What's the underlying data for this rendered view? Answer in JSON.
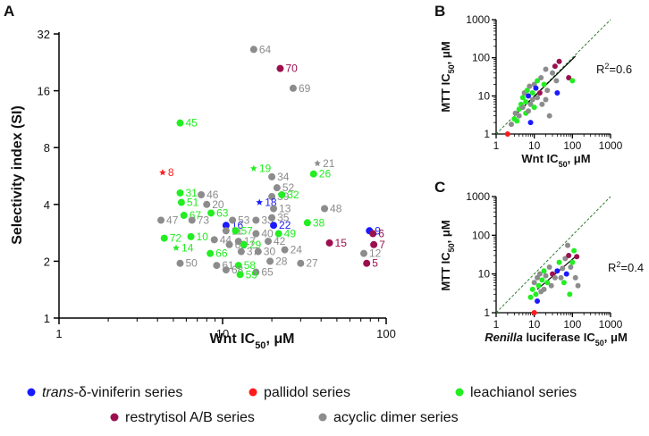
{
  "colors": {
    "trans": "#1a1aff",
    "pallidol": "#ff1a1a",
    "leachianol": "#22ee22",
    "restrytisol": "#9c0f4e",
    "acyclic": "#8c8c8c",
    "reference_line": "#2e7d2e",
    "fit_line": "#000000"
  },
  "legend": {
    "items": [
      {
        "key": "trans",
        "label_italic": "trans",
        "label_rest": "-δ-viniferin series"
      },
      {
        "key": "pallidol",
        "label_italic": "",
        "label_rest": "pallidol series"
      },
      {
        "key": "leachianol",
        "label_italic": "",
        "label_rest": "leachianol series"
      },
      {
        "key": "restrytisol",
        "label_italic": "",
        "label_rest": "restrytisol A/B series"
      },
      {
        "key": "acyclic",
        "label_italic": "",
        "label_rest": "acyclic dimer series"
      }
    ]
  },
  "chart_data": [
    {
      "panel": "A",
      "type": "scatter",
      "xscale": "log",
      "yscale": "log2",
      "xlim": [
        1,
        100
      ],
      "ylim": [
        1,
        32
      ],
      "xticks": [
        "1",
        "10",
        "100"
      ],
      "yticks": [
        "1",
        "2",
        "4",
        "8",
        "16",
        "32"
      ],
      "xlabel_main": "Wnt IC",
      "xlabel_sub": "50",
      "xlabel_unit": ", μM",
      "ylabel": "Selectivity index (SI)",
      "points": [
        {
          "id": "64",
          "x": 15.5,
          "y": 26.5,
          "series": "acyclic"
        },
        {
          "id": "70",
          "x": 22.5,
          "y": 21,
          "series": "restrytisol"
        },
        {
          "id": "69",
          "x": 27,
          "y": 16.5,
          "series": "acyclic"
        },
        {
          "id": "45",
          "x": 5.5,
          "y": 10.8,
          "series": "leachianol"
        },
        {
          "id": "21",
          "x": 38,
          "y": 6.6,
          "series": "acyclic",
          "marker": "star"
        },
        {
          "id": "8",
          "x": 4.3,
          "y": 5.9,
          "series": "pallidol",
          "marker": "star"
        },
        {
          "id": "19",
          "x": 15.5,
          "y": 6.2,
          "series": "leachianol",
          "marker": "star"
        },
        {
          "id": "34",
          "x": 20,
          "y": 5.6,
          "series": "acyclic"
        },
        {
          "id": "26",
          "x": 36,
          "y": 5.8,
          "series": "leachianol"
        },
        {
          "id": "52",
          "x": 21.5,
          "y": 4.9,
          "series": "acyclic"
        },
        {
          "id": "31",
          "x": 5.5,
          "y": 4.6,
          "series": "leachianol"
        },
        {
          "id": "46",
          "x": 7.4,
          "y": 4.5,
          "series": "acyclic"
        },
        {
          "id": "39",
          "x": 20,
          "y": 4.4,
          "series": "acyclic"
        },
        {
          "id": "32",
          "x": 23,
          "y": 4.5,
          "series": "leachianol"
        },
        {
          "id": "18",
          "x": 16.8,
          "y": 4.1,
          "series": "trans",
          "marker": "star"
        },
        {
          "id": "20",
          "x": 8,
          "y": 4.0,
          "series": "acyclic"
        },
        {
          "id": "51",
          "x": 5.6,
          "y": 4.1,
          "series": "leachianol"
        },
        {
          "id": "13",
          "x": 20.5,
          "y": 3.8,
          "series": "acyclic"
        },
        {
          "id": "48",
          "x": 42,
          "y": 3.8,
          "series": "acyclic"
        },
        {
          "id": "67",
          "x": 5.8,
          "y": 3.5,
          "series": "leachianol"
        },
        {
          "id": "63",
          "x": 8.5,
          "y": 3.6,
          "series": "leachianol"
        },
        {
          "id": "47",
          "x": 4.2,
          "y": 3.3,
          "series": "acyclic"
        },
        {
          "id": "73",
          "x": 6.5,
          "y": 3.3,
          "series": "acyclic"
        },
        {
          "id": "16",
          "x": 10.5,
          "y": 3.1,
          "series": "trans"
        },
        {
          "id": "53",
          "x": 11.5,
          "y": 3.3,
          "series": "acyclic"
        },
        {
          "id": "33",
          "x": 16,
          "y": 3.3,
          "series": "acyclic"
        },
        {
          "id": "35",
          "x": 20,
          "y": 3.4,
          "series": "acyclic"
        },
        {
          "id": "22",
          "x": 20.5,
          "y": 3.1,
          "series": "trans"
        },
        {
          "id": "38",
          "x": 33,
          "y": 3.2,
          "series": "leachianol"
        },
        {
          "id": "9",
          "x": 79,
          "y": 2.9,
          "series": "trans"
        },
        {
          "id": "6",
          "x": 83,
          "y": 2.8,
          "series": "restrytisol"
        },
        {
          "id": "11",
          "x": 10.5,
          "y": 2.9,
          "series": "acyclic"
        },
        {
          "id": "57",
          "x": 12,
          "y": 2.9,
          "series": "leachianol"
        },
        {
          "id": "40",
          "x": 16,
          "y": 2.8,
          "series": "acyclic"
        },
        {
          "id": "49",
          "x": 22,
          "y": 2.8,
          "series": "leachianol"
        },
        {
          "id": "72",
          "x": 4.4,
          "y": 2.65,
          "series": "leachianol"
        },
        {
          "id": "10",
          "x": 6.4,
          "y": 2.7,
          "series": "leachianol"
        },
        {
          "id": "44",
          "x": 8.9,
          "y": 2.6,
          "series": "acyclic"
        },
        {
          "id": "17",
          "x": 12.5,
          "y": 2.55,
          "series": "acyclic"
        },
        {
          "id": "42",
          "x": 19,
          "y": 2.55,
          "series": "acyclic"
        },
        {
          "id": "15",
          "x": 45,
          "y": 2.5,
          "series": "restrytisol"
        },
        {
          "id": "7",
          "x": 84,
          "y": 2.45,
          "series": "restrytisol"
        },
        {
          "id": "62",
          "x": 11,
          "y": 2.45,
          "series": "acyclic"
        },
        {
          "id": "29",
          "x": 13.5,
          "y": 2.45,
          "series": "leachianol"
        },
        {
          "id": "14",
          "x": 5.2,
          "y": 2.35,
          "series": "leachianol",
          "marker": "star"
        },
        {
          "id": "66",
          "x": 8.4,
          "y": 2.2,
          "series": "leachianol"
        },
        {
          "id": "37",
          "x": 13,
          "y": 2.25,
          "series": "acyclic"
        },
        {
          "id": "30",
          "x": 16.5,
          "y": 2.25,
          "series": "acyclic"
        },
        {
          "id": "24",
          "x": 24,
          "y": 2.3,
          "series": "acyclic"
        },
        {
          "id": "12",
          "x": 73,
          "y": 2.2,
          "series": "acyclic"
        },
        {
          "id": "50",
          "x": 5.5,
          "y": 1.95,
          "series": "acyclic"
        },
        {
          "id": "61",
          "x": 9.2,
          "y": 1.9,
          "series": "acyclic"
        },
        {
          "id": "58",
          "x": 12.5,
          "y": 1.9,
          "series": "leachianol"
        },
        {
          "id": "28",
          "x": 19.5,
          "y": 2.0,
          "series": "acyclic"
        },
        {
          "id": "27",
          "x": 30,
          "y": 1.95,
          "series": "acyclic"
        },
        {
          "id": "5",
          "x": 76,
          "y": 1.95,
          "series": "restrytisol"
        },
        {
          "id": "68",
          "x": 10.5,
          "y": 1.8,
          "series": "acyclic"
        },
        {
          "id": "65",
          "x": 16,
          "y": 1.75,
          "series": "acyclic"
        },
        {
          "id": "59",
          "x": 12.8,
          "y": 1.7,
          "series": "leachianol"
        }
      ]
    },
    {
      "panel": "B",
      "type": "scatter",
      "xscale": "log",
      "yscale": "log",
      "xlim": [
        1,
        1000
      ],
      "ylim": [
        1,
        1000
      ],
      "xticks": [
        "1",
        "10",
        "100",
        "1000"
      ],
      "yticks": [
        "1",
        "10",
        "100",
        "1000"
      ],
      "xlabel_main": "Wnt IC",
      "xlabel_sub": "50",
      "xlabel_unit": ", μM",
      "ylabel_main": "MTT IC",
      "ylabel_sub": "50",
      "ylabel_unit": ", μM",
      "r2_label": "R",
      "r2_value": "=0.6",
      "fit_line": [
        [
          3,
          3
        ],
        [
          120,
          110
        ]
      ],
      "points": [
        {
          "x": 2,
          "y": 1,
          "series": "pallidol"
        },
        {
          "x": 2.5,
          "y": 1.8,
          "series": "acyclic"
        },
        {
          "x": 3,
          "y": 2.5,
          "series": "leachianol"
        },
        {
          "x": 3.2,
          "y": 3.5,
          "series": "acyclic"
        },
        {
          "x": 3.5,
          "y": 2.2,
          "series": "leachianol"
        },
        {
          "x": 4,
          "y": 4.5,
          "series": "leachianol"
        },
        {
          "x": 4,
          "y": 3,
          "series": "acyclic"
        },
        {
          "x": 4.5,
          "y": 6,
          "series": "leachianol"
        },
        {
          "x": 5,
          "y": 9,
          "series": "leachianol"
        },
        {
          "x": 5,
          "y": 5,
          "series": "acyclic"
        },
        {
          "x": 5.5,
          "y": 12,
          "series": "acyclic"
        },
        {
          "x": 6,
          "y": 3.5,
          "series": "leachianol"
        },
        {
          "x": 6,
          "y": 7,
          "series": "leachianol"
        },
        {
          "x": 6.5,
          "y": 14,
          "series": "leachianol"
        },
        {
          "x": 7,
          "y": 4,
          "series": "acyclic"
        },
        {
          "x": 7,
          "y": 10,
          "series": "trans"
        },
        {
          "x": 7.5,
          "y": 18,
          "series": "acyclic"
        },
        {
          "x": 8,
          "y": 6,
          "series": "acyclic"
        },
        {
          "x": 8,
          "y": 2,
          "series": "trans"
        },
        {
          "x": 9,
          "y": 12,
          "series": "leachianol"
        },
        {
          "x": 9,
          "y": 8,
          "series": "acyclic"
        },
        {
          "x": 10,
          "y": 20,
          "series": "acyclic"
        },
        {
          "x": 10,
          "y": 5,
          "series": "leachianol"
        },
        {
          "x": 11,
          "y": 16,
          "series": "trans"
        },
        {
          "x": 12,
          "y": 25,
          "series": "leachianol"
        },
        {
          "x": 12,
          "y": 9,
          "series": "acyclic"
        },
        {
          "x": 14,
          "y": 12,
          "series": "restrytisol"
        },
        {
          "x": 15,
          "y": 30,
          "series": "acyclic"
        },
        {
          "x": 16,
          "y": 6,
          "series": "acyclic"
        },
        {
          "x": 18,
          "y": 20,
          "series": "leachianol"
        },
        {
          "x": 20,
          "y": 50,
          "series": "acyclic"
        },
        {
          "x": 20,
          "y": 8,
          "series": "acyclic"
        },
        {
          "x": 22,
          "y": 14,
          "series": "acyclic"
        },
        {
          "x": 25,
          "y": 3,
          "series": "acyclic"
        },
        {
          "x": 30,
          "y": 40,
          "series": "acyclic"
        },
        {
          "x": 35,
          "y": 60,
          "series": "restrytisol"
        },
        {
          "x": 38,
          "y": 25,
          "series": "acyclic"
        },
        {
          "x": 40,
          "y": 12,
          "series": "trans"
        },
        {
          "x": 45,
          "y": 80,
          "series": "restrytisol"
        },
        {
          "x": 80,
          "y": 30,
          "series": "restrytisol"
        },
        {
          "x": 100,
          "y": 25,
          "series": "leachianol"
        }
      ]
    },
    {
      "panel": "C",
      "type": "scatter",
      "xscale": "log",
      "yscale": "log",
      "xlim": [
        1,
        1000
      ],
      "ylim": [
        1,
        1000
      ],
      "xticks": [
        "1",
        "10",
        "100",
        "1000"
      ],
      "yticks": [
        "1",
        "10",
        "100",
        "1000"
      ],
      "xlabel_italic": "Renilla",
      "xlabel_main": " luciferase IC",
      "xlabel_sub": "50",
      "xlabel_unit": ", μM",
      "ylabel_main": "MTT IC",
      "ylabel_sub": "50",
      "ylabel_unit": ", μM",
      "r2_label": "R",
      "r2_value": "=0.4",
      "fit_line": [
        [
          12,
          4
        ],
        [
          130,
          30
        ]
      ],
      "points": [
        {
          "x": 10,
          "y": 1,
          "series": "pallidol"
        },
        {
          "x": 8,
          "y": 2.5,
          "series": "leachianol"
        },
        {
          "x": 9,
          "y": 4,
          "series": "leachianol"
        },
        {
          "x": 10,
          "y": 6,
          "series": "acyclic"
        },
        {
          "x": 11,
          "y": 3,
          "series": "leachianol"
        },
        {
          "x": 12,
          "y": 2,
          "series": "trans"
        },
        {
          "x": 12,
          "y": 8,
          "series": "acyclic"
        },
        {
          "x": 13,
          "y": 5,
          "series": "leachianol"
        },
        {
          "x": 14,
          "y": 10,
          "series": "acyclic"
        },
        {
          "x": 15,
          "y": 3.5,
          "series": "acyclic"
        },
        {
          "x": 16,
          "y": 7,
          "series": "leachianol"
        },
        {
          "x": 18,
          "y": 12,
          "series": "leachianol"
        },
        {
          "x": 18,
          "y": 4,
          "series": "acyclic"
        },
        {
          "x": 20,
          "y": 9,
          "series": "acyclic"
        },
        {
          "x": 22,
          "y": 6,
          "series": "leachianol"
        },
        {
          "x": 25,
          "y": 15,
          "series": "acyclic"
        },
        {
          "x": 28,
          "y": 5,
          "series": "acyclic"
        },
        {
          "x": 30,
          "y": 10,
          "series": "restrytisol"
        },
        {
          "x": 35,
          "y": 8,
          "series": "acyclic"
        },
        {
          "x": 40,
          "y": 12,
          "series": "trans"
        },
        {
          "x": 45,
          "y": 20,
          "series": "leachianol"
        },
        {
          "x": 50,
          "y": 8,
          "series": "acyclic"
        },
        {
          "x": 55,
          "y": 14,
          "series": "acyclic"
        },
        {
          "x": 60,
          "y": 6,
          "series": "leachianol"
        },
        {
          "x": 65,
          "y": 25,
          "series": "acyclic"
        },
        {
          "x": 70,
          "y": 10,
          "series": "trans"
        },
        {
          "x": 75,
          "y": 55,
          "series": "acyclic"
        },
        {
          "x": 80,
          "y": 30,
          "series": "restrytisol"
        },
        {
          "x": 85,
          "y": 3,
          "series": "leachianol"
        },
        {
          "x": 90,
          "y": 15,
          "series": "acyclic"
        },
        {
          "x": 100,
          "y": 20,
          "series": "leachianol"
        },
        {
          "x": 110,
          "y": 40,
          "series": "leachianol"
        },
        {
          "x": 120,
          "y": 8,
          "series": "acyclic"
        },
        {
          "x": 130,
          "y": 28,
          "series": "restrytisol"
        },
        {
          "x": 140,
          "y": 5,
          "series": "acyclic"
        }
      ]
    }
  ]
}
